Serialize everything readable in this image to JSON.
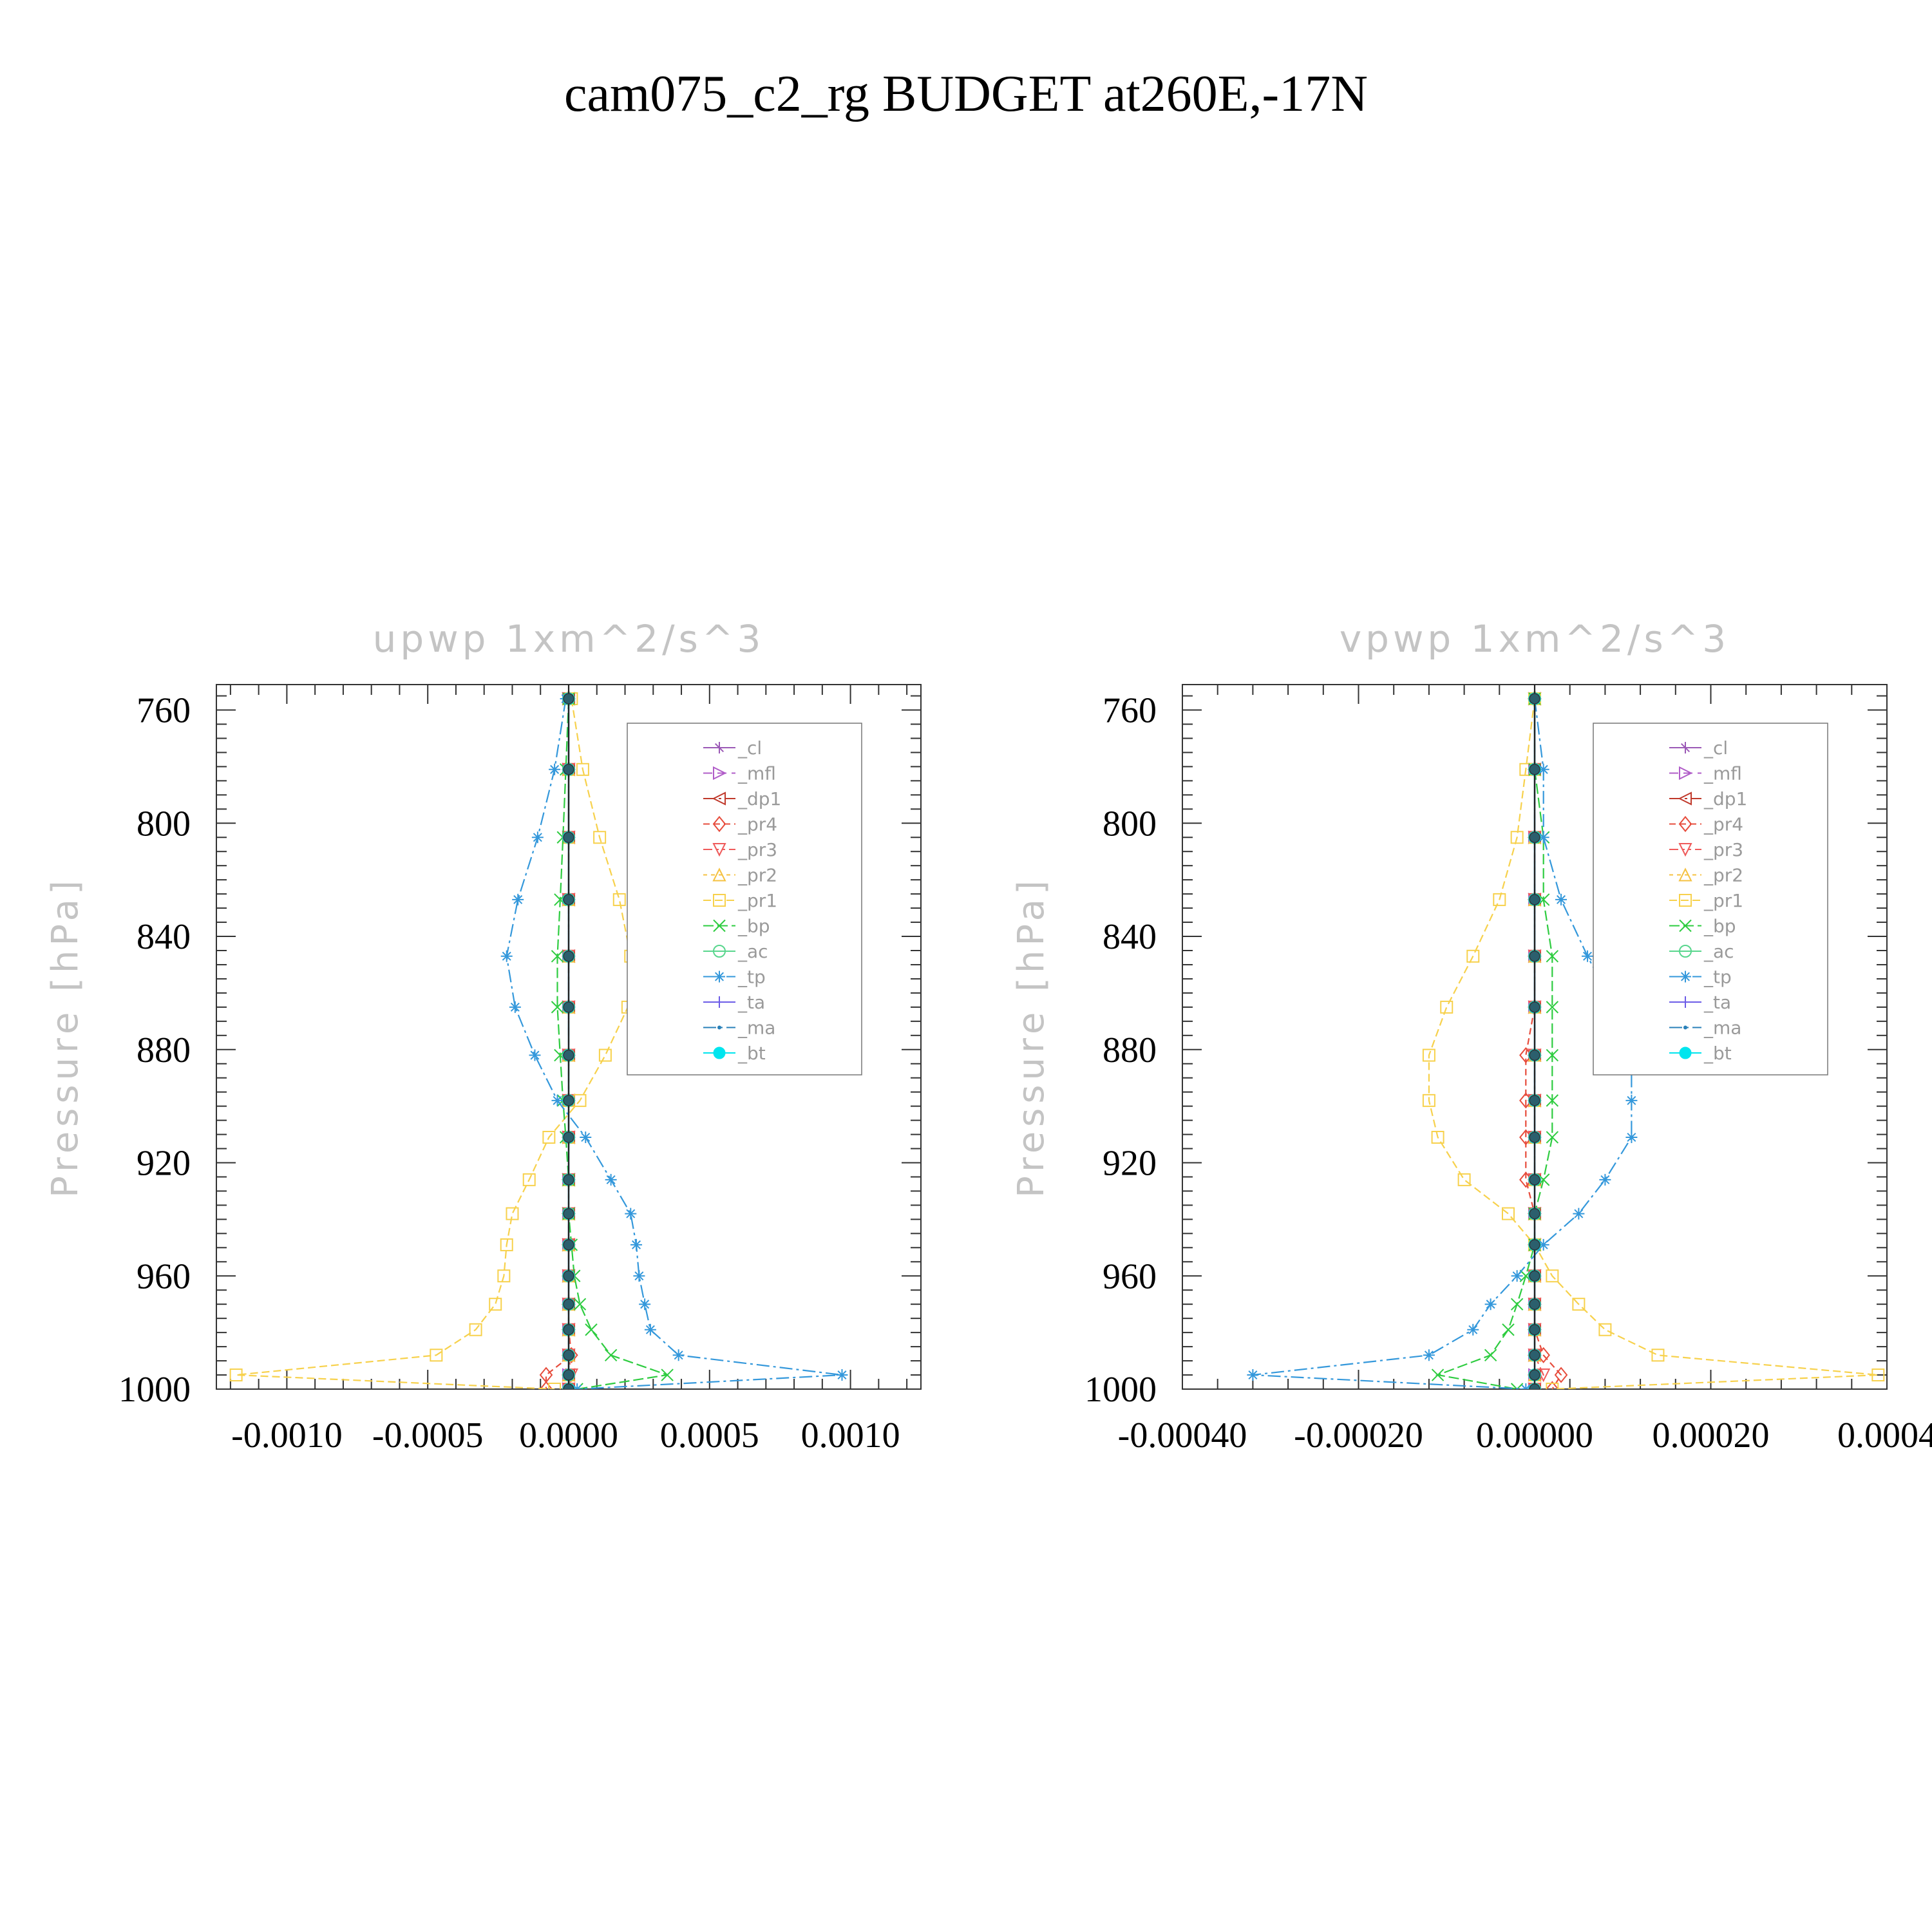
{
  "figure": {
    "title": "cam075_c2_rg  BUDGET at260E,-17N"
  },
  "chart_data": [
    {
      "type": "line",
      "title": "upwp   1xm^2/s^3",
      "ylabel": "Pressure [hPa]",
      "xlabel": "",
      "ylim": [
        1000,
        751
      ],
      "xlim": [
        -0.00125,
        0.00125
      ],
      "y_ticks": [
        760,
        800,
        840,
        880,
        920,
        960,
        1000
      ],
      "y_tick_labels": [
        "760",
        "800",
        "840",
        "880",
        "920",
        "960",
        "1000"
      ],
      "x_ticks": [
        -0.001,
        -0.0005,
        0,
        0.0005,
        0.001
      ],
      "x_tick_labels": [
        "-0.0010",
        "-0.0005",
        "0.0000",
        "0.0005",
        "0.0010"
      ],
      "legend_position": "top-right",
      "y": [
        756,
        781,
        805,
        827,
        847,
        865,
        882,
        898,
        911,
        926,
        938,
        949,
        960,
        970,
        979,
        988,
        995,
        1000
      ],
      "series": [
        {
          "name": "_cl",
          "color": "#9b59b6",
          "marker": "star",
          "values": [
            0,
            0,
            0,
            0,
            0,
            0,
            0,
            0,
            0,
            0,
            0,
            0,
            0,
            0,
            0,
            0,
            0,
            0
          ]
        },
        {
          "name": "_mfl",
          "color": "#b05cc8",
          "marker": "triangle-right",
          "values": [
            0,
            0,
            0,
            0,
            0,
            0,
            0,
            0,
            0,
            0,
            0,
            0,
            0,
            0,
            0,
            0,
            0,
            0
          ]
        },
        {
          "name": "_dp1",
          "color": "#c0392b",
          "marker": "triangle-left",
          "values": [
            0,
            0,
            0,
            0,
            0,
            0,
            0,
            0,
            0,
            0,
            0,
            0,
            0,
            0,
            0,
            0,
            0,
            0
          ]
        },
        {
          "name": "_pr4",
          "color": "#e74c3c",
          "marker": "diamond",
          "values": [
            0,
            0,
            0,
            0,
            0,
            0,
            0,
            0,
            0,
            0,
            0,
            0,
            0,
            0,
            0,
            1e-05,
            -8e-05,
            -8e-05
          ]
        },
        {
          "name": "_pr3",
          "color": "#ef5a5a",
          "marker": "triangle-down",
          "values": [
            0,
            0,
            0,
            0,
            0,
            0,
            0,
            0,
            0,
            0,
            0,
            0,
            0,
            0,
            0,
            0,
            1e-05,
            0
          ]
        },
        {
          "name": "_pr2",
          "color": "#f5c242",
          "marker": "triangle-up",
          "values": [
            0,
            0,
            0,
            0,
            0,
            0,
            0,
            0,
            0,
            0,
            0,
            0,
            0,
            0,
            0,
            0,
            0,
            0
          ]
        },
        {
          "name": "_pr1",
          "color": "#f7d14c",
          "marker": "square",
          "values": [
            1e-05,
            5e-05,
            0.00011,
            0.00018,
            0.00022,
            0.00021,
            0.00013,
            4e-05,
            -7e-05,
            -0.00014,
            -0.0002,
            -0.00022,
            -0.00023,
            -0.00026,
            -0.00033,
            -0.00047,
            -0.00118,
            -5e-05
          ]
        },
        {
          "name": "_bp",
          "color": "#2ecc40",
          "marker": "x",
          "values": [
            0,
            -1e-05,
            -2e-05,
            -3e-05,
            -4e-05,
            -4e-05,
            -3e-05,
            -2e-05,
            -1e-05,
            0,
            0,
            1e-05,
            2e-05,
            4e-05,
            8e-05,
            0.00015,
            0.00035,
            3e-05
          ]
        },
        {
          "name": "_ac",
          "color": "#58d68d",
          "marker": "circle",
          "values": [
            0,
            0,
            0,
            0,
            0,
            0,
            0,
            0,
            0,
            0,
            0,
            0,
            0,
            0,
            0,
            0,
            0,
            0
          ]
        },
        {
          "name": "_tp",
          "color": "#3498db",
          "marker": "asterisk",
          "values": [
            -1e-05,
            -5e-05,
            -0.00011,
            -0.00018,
            -0.00022,
            -0.00019,
            -0.00012,
            -4e-05,
            6e-05,
            0.00015,
            0.00022,
            0.00024,
            0.00025,
            0.00027,
            0.00029,
            0.00039,
            0.00097,
            3e-05
          ]
        },
        {
          "name": "_ta",
          "color": "#6c5ce7",
          "marker": "plus",
          "values": [
            0,
            0,
            0,
            0,
            0,
            0,
            0,
            0,
            0,
            0,
            0,
            0,
            0,
            0,
            0,
            0,
            0,
            0
          ]
        },
        {
          "name": "_ma",
          "color": "#2980b9",
          "marker": "dot",
          "values": [
            0,
            0,
            0,
            0,
            0,
            0,
            0,
            0,
            0,
            0,
            0,
            0,
            0,
            0,
            0,
            0,
            0,
            0
          ]
        },
        {
          "name": "_bt",
          "color": "#00e5ee",
          "marker": "filled-circle",
          "values": [
            0,
            0,
            0,
            0,
            0,
            0,
            0,
            0,
            0,
            0,
            0,
            0,
            0,
            0,
            0,
            0,
            0,
            0
          ]
        }
      ]
    },
    {
      "type": "line",
      "title": "vpwp   1xm^2/s^3",
      "ylabel": "Pressure [hPa]",
      "xlabel": "",
      "ylim": [
        1000,
        751
      ],
      "xlim": [
        -0.0004,
        0.0004
      ],
      "y_ticks": [
        760,
        800,
        840,
        880,
        920,
        960,
        1000
      ],
      "y_tick_labels": [
        "760",
        "800",
        "840",
        "880",
        "920",
        "960",
        "1000"
      ],
      "x_ticks": [
        -0.0004,
        -0.0002,
        0,
        0.0002,
        0.0004
      ],
      "x_tick_labels": [
        "-0.00040",
        "-0.00020",
        "0.00000",
        "0.00020",
        "0.0004"
      ],
      "legend_position": "top-right",
      "y": [
        756,
        781,
        805,
        827,
        847,
        865,
        882,
        898,
        911,
        926,
        938,
        949,
        960,
        970,
        979,
        988,
        995,
        1000
      ],
      "series": [
        {
          "name": "_cl",
          "color": "#9b59b6",
          "marker": "star",
          "values": [
            0,
            0,
            0,
            0,
            0,
            0,
            0,
            0,
            0,
            0,
            0,
            0,
            0,
            0,
            0,
            0,
            0,
            0
          ]
        },
        {
          "name": "_mfl",
          "color": "#b05cc8",
          "marker": "triangle-right",
          "values": [
            0,
            0,
            0,
            0,
            0,
            0,
            0,
            0,
            0,
            0,
            0,
            0,
            0,
            0,
            0,
            0,
            0,
            0
          ]
        },
        {
          "name": "_dp1",
          "color": "#c0392b",
          "marker": "triangle-left",
          "values": [
            0,
            0,
            0,
            0,
            0,
            0,
            0,
            0,
            0,
            0,
            0,
            0,
            0,
            0,
            0,
            0,
            0,
            0
          ]
        },
        {
          "name": "_pr4",
          "color": "#e74c3c",
          "marker": "diamond",
          "values": [
            0,
            0,
            0,
            0,
            0,
            0,
            -1e-05,
            -1e-05,
            -1e-05,
            -1e-05,
            0,
            0,
            0,
            0,
            0,
            1e-05,
            3e-05,
            2e-05
          ]
        },
        {
          "name": "_pr3",
          "color": "#ef5a5a",
          "marker": "triangle-down",
          "values": [
            0,
            0,
            0,
            0,
            0,
            0,
            0,
            0,
            0,
            0,
            0,
            0,
            0,
            0,
            0,
            0,
            1e-05,
            0
          ]
        },
        {
          "name": "_pr2",
          "color": "#f5c242",
          "marker": "triangle-up",
          "values": [
            0,
            0,
            0,
            0,
            0,
            0,
            0,
            0,
            0,
            0,
            0,
            0,
            0,
            0,
            0,
            0,
            0,
            0
          ]
        },
        {
          "name": "_pr1",
          "color": "#f7d14c",
          "marker": "square",
          "values": [
            0,
            -1e-05,
            -2e-05,
            -4e-05,
            -7e-05,
            -0.0001,
            -0.00012,
            -0.00012,
            -0.00011,
            -8e-05,
            -3e-05,
            0,
            2e-05,
            5e-05,
            8e-05,
            0.00014,
            0.00039,
            2e-05
          ]
        },
        {
          "name": "_bp",
          "color": "#2ecc40",
          "marker": "x",
          "values": [
            0,
            0,
            1e-05,
            1e-05,
            2e-05,
            2e-05,
            2e-05,
            2e-05,
            2e-05,
            1e-05,
            0,
            0,
            -1e-05,
            -2e-05,
            -3e-05,
            -5e-05,
            -0.00011,
            -2e-05
          ]
        },
        {
          "name": "_ac",
          "color": "#58d68d",
          "marker": "circle",
          "values": [
            0,
            0,
            0,
            0,
            0,
            0,
            0,
            0,
            0,
            0,
            0,
            0,
            0,
            0,
            0,
            0,
            0,
            0
          ]
        },
        {
          "name": "_tp",
          "color": "#3498db",
          "marker": "asterisk",
          "values": [
            0,
            1e-05,
            1e-05,
            3e-05,
            6e-05,
            9e-05,
            0.00011,
            0.00011,
            0.00011,
            8e-05,
            5e-05,
            1e-05,
            -2e-05,
            -5e-05,
            -7e-05,
            -0.00012,
            -0.00032,
            -1e-05
          ]
        },
        {
          "name": "_ta",
          "color": "#6c5ce7",
          "marker": "plus",
          "values": [
            0,
            0,
            0,
            0,
            0,
            0,
            0,
            0,
            0,
            0,
            0,
            0,
            0,
            0,
            0,
            0,
            0,
            0
          ]
        },
        {
          "name": "_ma",
          "color": "#2980b9",
          "marker": "dot",
          "values": [
            0,
            0,
            0,
            0,
            0,
            0,
            0,
            0,
            0,
            0,
            0,
            0,
            0,
            0,
            0,
            0,
            0,
            0
          ]
        },
        {
          "name": "_bt",
          "color": "#00e5ee",
          "marker": "filled-circle",
          "values": [
            0,
            0,
            0,
            0,
            0,
            0,
            0,
            0,
            0,
            0,
            0,
            0,
            0,
            0,
            0,
            0,
            0,
            0
          ]
        }
      ]
    }
  ]
}
